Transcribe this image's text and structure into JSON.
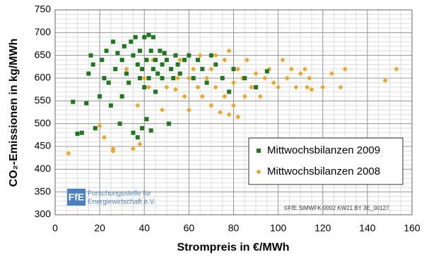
{
  "chart_data": {
    "type": "scatter",
    "xlabel": "Strompreis in €/MWh",
    "ylabel": "CO₂-Emissionen in kg/MWh",
    "xlim": [
      0,
      160
    ],
    "xticks": [
      0,
      20,
      40,
      60,
      80,
      100,
      120,
      140,
      160
    ],
    "ylim": [
      300,
      750
    ],
    "yticks": [
      300,
      350,
      400,
      450,
      500,
      550,
      600,
      650,
      700,
      750
    ],
    "grid": true,
    "xminor": 5,
    "yminor": 10,
    "legend": "lower right",
    "annotations": [
      "FfE",
      "Forschungsstelle für",
      "Energiewirtschaft e.V.",
      "©FfE StMWFK-0002 KW21 BY 3E_00127"
    ],
    "series": [
      {
        "name": "Mittwochsbilanzen 2009",
        "color": "#1b7a1b",
        "marker": "square",
        "x": [
          8,
          10,
          12,
          14,
          15,
          16,
          17,
          18,
          20,
          21,
          22,
          23,
          24,
          25,
          26,
          27,
          28,
          29,
          30,
          30,
          31,
          32,
          33,
          34,
          35,
          35,
          36,
          37,
          37,
          38,
          38,
          39,
          39,
          40,
          40,
          41,
          41,
          42,
          42,
          43,
          43,
          44,
          44,
          45,
          45,
          46,
          47,
          48,
          48,
          49,
          50,
          51,
          52,
          53,
          54,
          55,
          56,
          58,
          60,
          62,
          64,
          66,
          68,
          70,
          72,
          75,
          78,
          80,
          85,
          90,
          95
        ],
        "values": [
          548,
          478,
          480,
          545,
          610,
          650,
          630,
          490,
          560,
          640,
          600,
          660,
          590,
          540,
          680,
          620,
          655,
          500,
          640,
          560,
          670,
          610,
          590,
          680,
          650,
          480,
          690,
          630,
          470,
          600,
          660,
          490,
          620,
          690,
          580,
          640,
          510,
          695,
          600,
          660,
          485,
          620,
          690,
          640,
          570,
          610,
          660,
          630,
          600,
          655,
          640,
          500,
          620,
          600,
          650,
          630,
          610,
          640,
          650,
          600,
          640,
          620,
          590,
          650,
          630,
          600,
          570,
          620,
          600,
          580,
          615
        ]
      },
      {
        "name": "Mittwochsbilanzen 2008",
        "color": "#f5a21f",
        "marker": "diamond",
        "x": [
          6,
          20,
          22,
          26,
          26,
          30,
          32,
          35,
          37,
          38,
          40,
          42,
          44,
          45,
          46,
          48,
          50,
          52,
          54,
          55,
          56,
          58,
          60,
          60,
          62,
          64,
          65,
          66,
          68,
          70,
          70,
          72,
          72,
          74,
          75,
          76,
          76,
          78,
          78,
          80,
          80,
          82,
          82,
          84,
          85,
          86,
          88,
          90,
          92,
          94,
          96,
          98,
          100,
          102,
          104,
          106,
          108,
          110,
          112,
          113,
          114,
          115,
          120,
          124,
          128,
          130,
          148,
          153
        ],
        "values": [
          435,
          495,
          470,
          440,
          445,
          560,
          620,
          445,
          540,
          455,
          600,
          580,
          640,
          570,
          610,
          530,
          580,
          620,
          575,
          600,
          640,
          560,
          600,
          530,
          620,
          580,
          650,
          560,
          600,
          620,
          540,
          650,
          580,
          525,
          600,
          560,
          640,
          520,
          660,
          590,
          540,
          620,
          515,
          600,
          560,
          640,
          580,
          610,
          560,
          600,
          620,
          590,
          580,
          640,
          600,
          620,
          580,
          610,
          620,
          580,
          600,
          575,
          580,
          610,
          580,
          620,
          595,
          620
        ]
      }
    ]
  }
}
